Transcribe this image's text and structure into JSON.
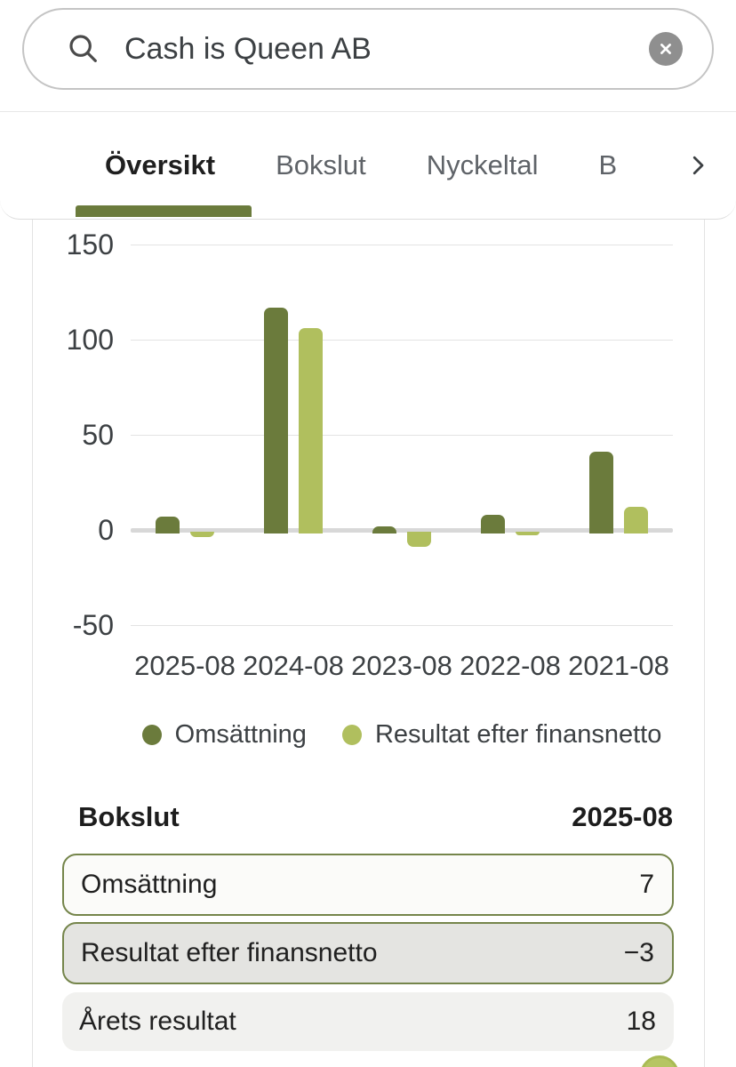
{
  "search": {
    "value": "Cash is Queen AB",
    "icons": {
      "left": "magnifier-search",
      "right": "clear-circle-x"
    }
  },
  "tabs": {
    "items": [
      {
        "label": "Översikt",
        "active": true
      },
      {
        "label": "Bokslut",
        "active": false
      },
      {
        "label": "Nyckeltal",
        "active": false
      },
      {
        "label": "B",
        "active": false,
        "note": "truncated tab label"
      }
    ],
    "overflow_icon": "chevron-right"
  },
  "colors": {
    "accent_dark_green": "#6b7b3c",
    "accent_light_green": "#b0bf5e",
    "row_border_green": "#75854b",
    "tab_underline": "#6b7b3c"
  },
  "chart_data": {
    "type": "bar",
    "categories": [
      "2025-08",
      "2024-08",
      "2023-08",
      "2022-08",
      "2021-08"
    ],
    "series": [
      {
        "name": "Omsättning",
        "color": "#6b7b3c",
        "values": [
          7,
          117,
          2,
          8,
          41
        ]
      },
      {
        "name": "Resultat efter finansnetto",
        "color": "#b0bf5e",
        "values": [
          -3,
          106,
          -8,
          -2,
          12
        ]
      }
    ],
    "ylim": [
      -50,
      150
    ],
    "yticks": [
      "150",
      "100",
      "50",
      "0",
      "-50"
    ],
    "ytick_values": [
      150,
      100,
      50,
      0,
      -50
    ],
    "grid": true,
    "legend_position": "bottom"
  },
  "bokslut": {
    "title": "Bokslut",
    "period": "2025-08",
    "rows": [
      {
        "label": "Omsättning",
        "value": "7",
        "style": "outlined-light"
      },
      {
        "label": "Resultat efter finansnetto",
        "value": "−3",
        "style": "outlined-gray"
      },
      {
        "label": "Årets resultat",
        "value": "18",
        "style": "plain"
      }
    ]
  }
}
